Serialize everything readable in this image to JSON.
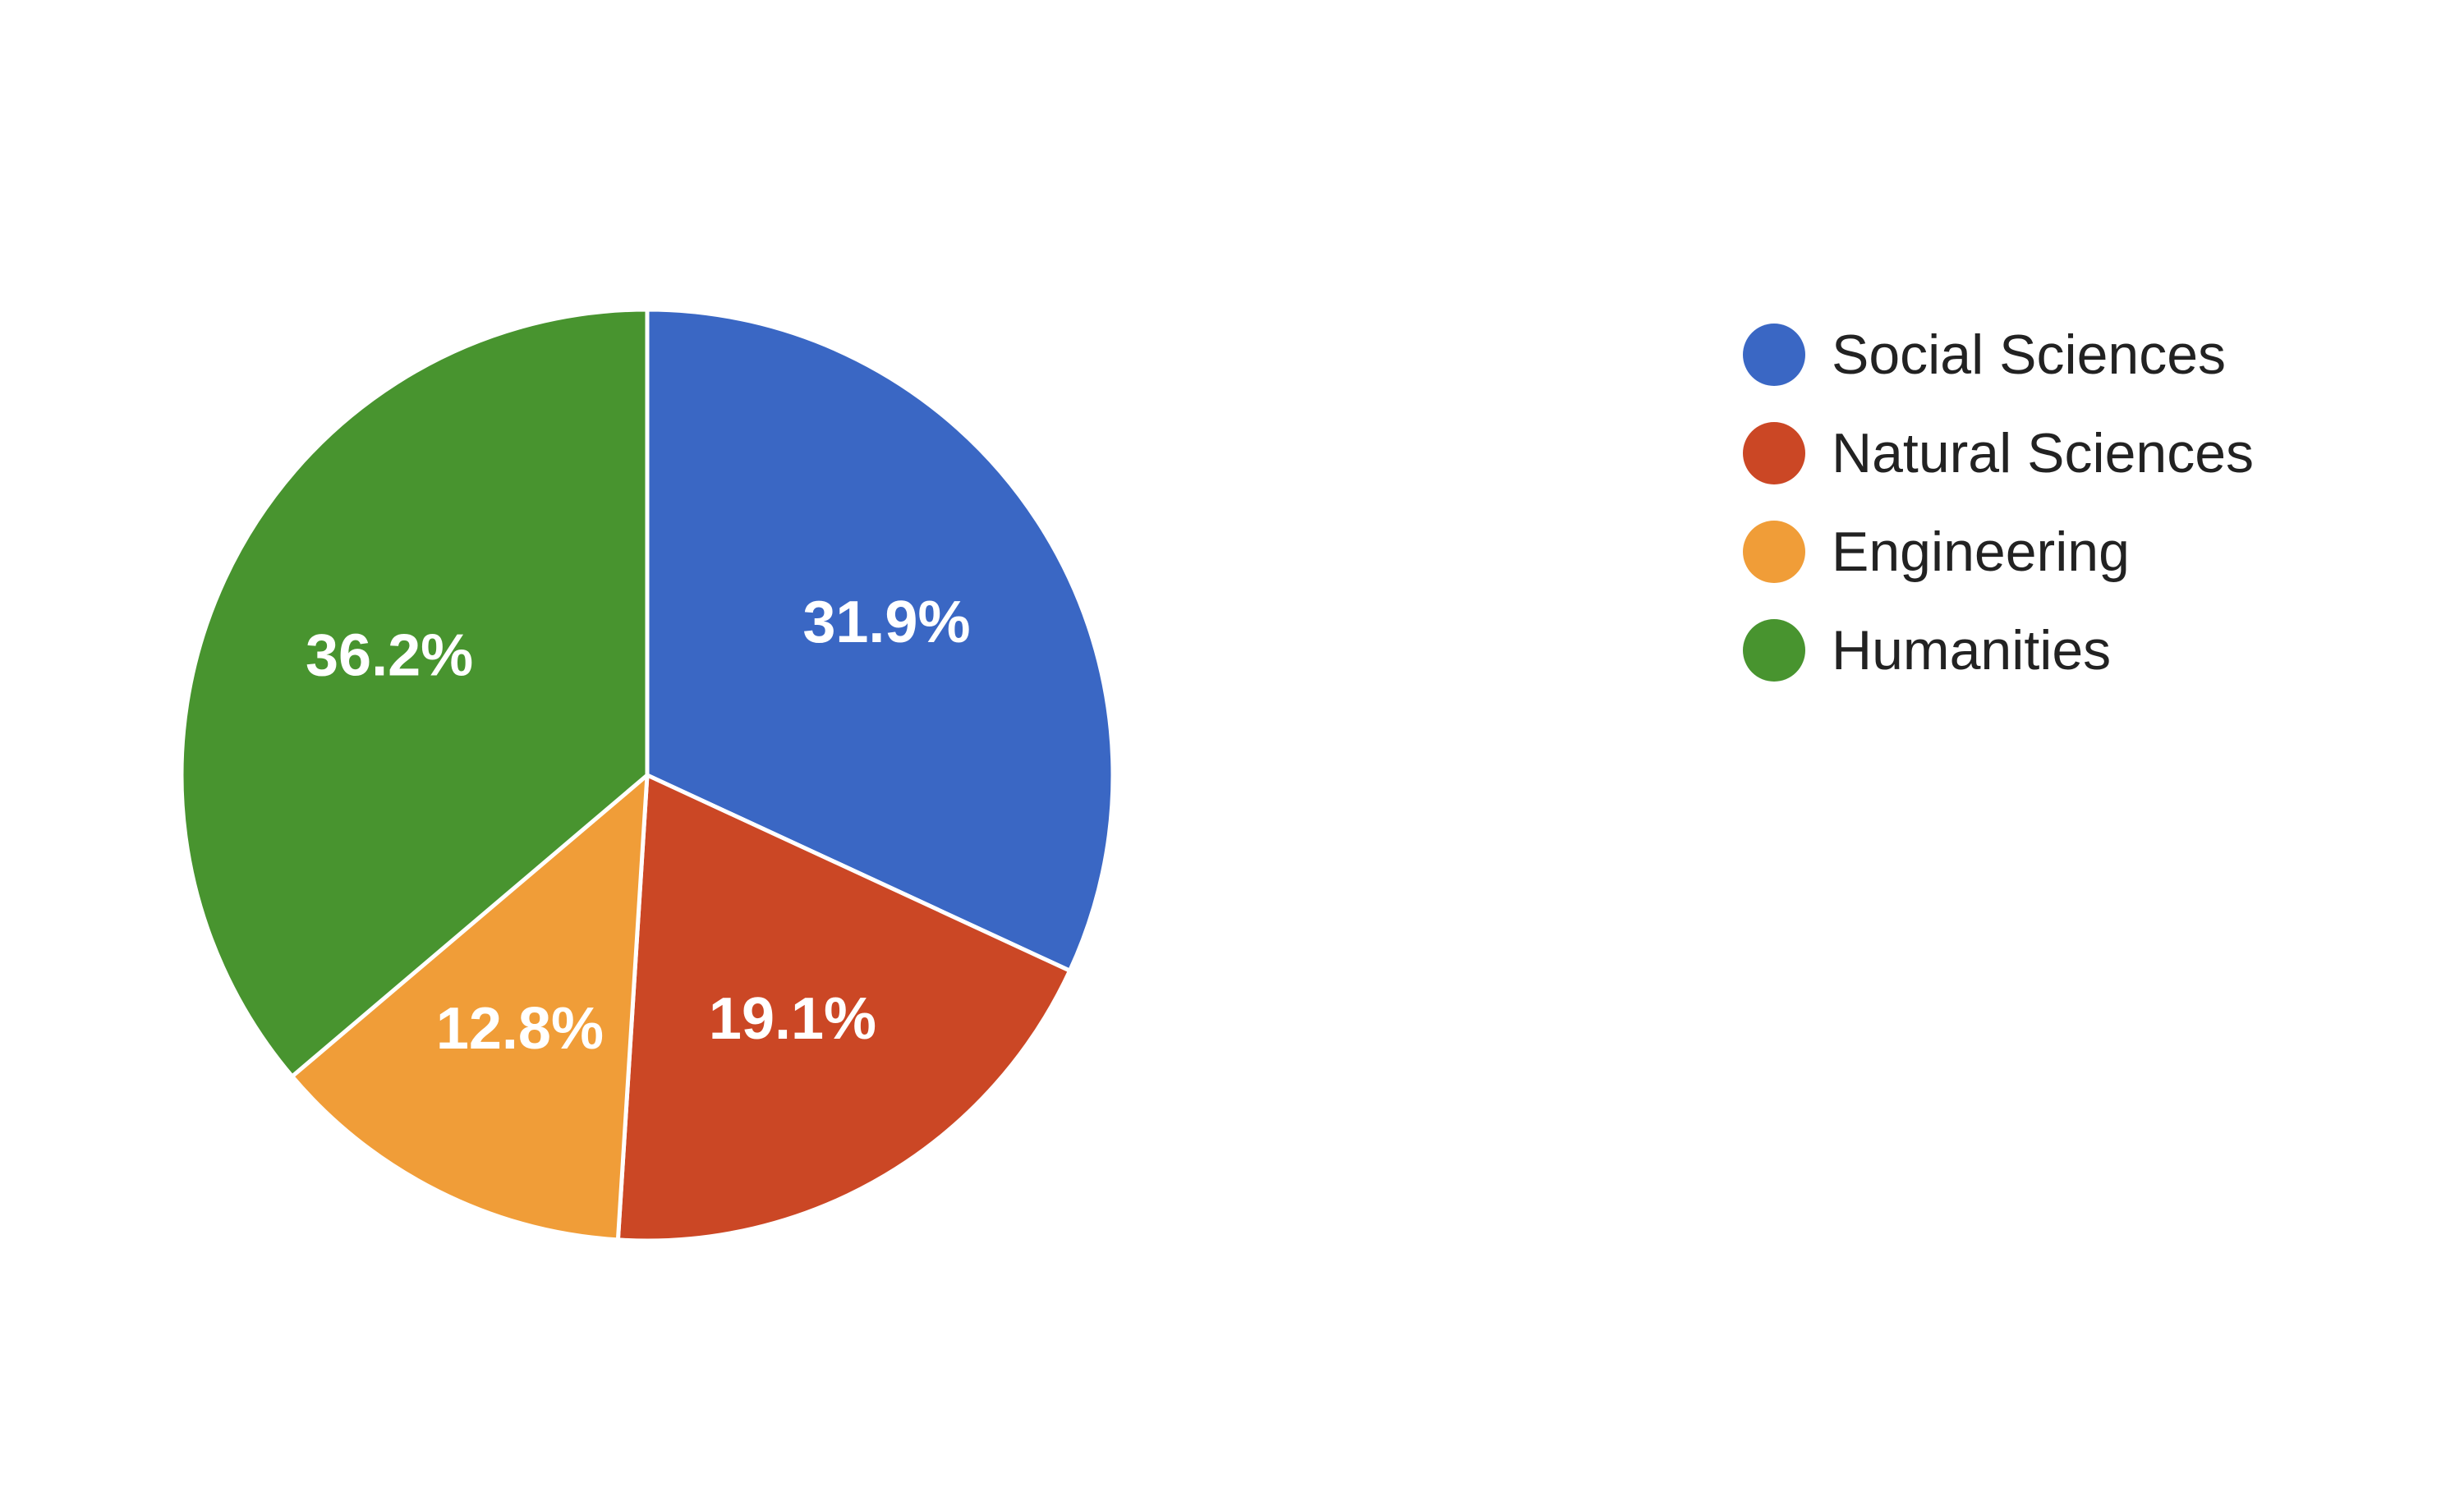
{
  "chart_data": {
    "type": "pie",
    "categories": [
      "Social Sciences",
      "Natural Sciences",
      "Engineering",
      "Humanities"
    ],
    "values": [
      31.9,
      19.1,
      12.8,
      36.2
    ],
    "labels": [
      "31.9%",
      "19.1%",
      "12.8%",
      "36.2%"
    ],
    "colors": [
      "#3a67c4",
      "#cb4725",
      "#f09d38",
      "#48942f"
    ],
    "start_angle_deg": 90,
    "direction": "clockwise",
    "legend_position": "right",
    "title": ""
  }
}
